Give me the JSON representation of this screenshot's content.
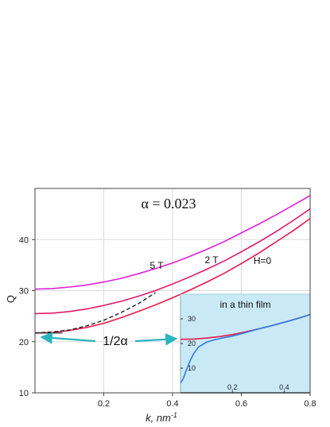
{
  "chart_data": [
    {
      "type": "line",
      "xlabel": "k, nm",
      "xlabel_exponent": "-1",
      "ylabel": "Q",
      "xlim": [
        0.0,
        0.8
      ],
      "ylim": [
        10,
        50
      ],
      "x_ticks": [
        0.2,
        0.4,
        0.6,
        0.8
      ],
      "y_ticks": [
        10,
        20,
        30,
        40
      ],
      "grid": true,
      "annotation_alpha": "α = 0.023",
      "annotation_half": "1/2α",
      "annotation_marker_y": 21.7,
      "colors": {
        "H=0": "#e8194a",
        "2 T": "#e0196e",
        "5 T": "#e020d8",
        "dashed": "#222222",
        "arrow": "#2ab5c0"
      },
      "series": [
        {
          "name": "H=0",
          "label": "H=0",
          "x": [
            0.0,
            0.05,
            0.1,
            0.15,
            0.2,
            0.25,
            0.3,
            0.35,
            0.4,
            0.45,
            0.5,
            0.55,
            0.6,
            0.65,
            0.7,
            0.75,
            0.8
          ],
          "y": [
            21.7,
            21.8,
            22.2,
            22.8,
            23.6,
            24.7,
            25.9,
            27.2,
            28.6,
            30.1,
            31.7,
            33.4,
            35.3,
            37.3,
            39.5,
            41.7,
            44.1
          ]
        },
        {
          "name": "2 T",
          "label": "2 T",
          "x": [
            0.0,
            0.05,
            0.1,
            0.15,
            0.2,
            0.25,
            0.3,
            0.35,
            0.4,
            0.45,
            0.5,
            0.55,
            0.6,
            0.65,
            0.7,
            0.75,
            0.8
          ],
          "y": [
            25.5,
            25.6,
            25.9,
            26.4,
            27.1,
            27.9,
            28.9,
            30.0,
            31.3,
            32.7,
            34.2,
            35.8,
            37.6,
            39.5,
            41.5,
            43.7,
            46.0
          ]
        },
        {
          "name": "5 T",
          "label": "5 T",
          "x": [
            0.0,
            0.05,
            0.1,
            0.15,
            0.2,
            0.25,
            0.3,
            0.35,
            0.4,
            0.45,
            0.5,
            0.55,
            0.6,
            0.65,
            0.7,
            0.75,
            0.8
          ],
          "y": [
            30.3,
            30.4,
            30.7,
            31.1,
            31.7,
            32.4,
            33.3,
            34.3,
            35.4,
            36.7,
            38.1,
            39.6,
            41.3,
            43.0,
            44.8,
            46.7,
            48.6
          ]
        },
        {
          "name": "dashed",
          "label": "",
          "style": "dashed",
          "x": [
            0.0,
            0.05,
            0.1,
            0.15,
            0.2,
            0.25,
            0.3,
            0.35
          ],
          "y": [
            21.7,
            21.9,
            22.3,
            23.1,
            24.2,
            25.7,
            27.4,
            29.6
          ]
        }
      ]
    },
    {
      "type": "line",
      "title": "in a thin film",
      "xlim": [
        0.0,
        0.5
      ],
      "ylim": [
        0,
        40
      ],
      "x_ticks": [
        0.2,
        0.4
      ],
      "y_ticks": [
        10,
        20,
        30
      ],
      "background": "#c9e9f6",
      "series": [
        {
          "name": "H=0",
          "color": "#e8194a",
          "x": [
            0.0,
            0.05,
            0.1,
            0.15,
            0.2,
            0.25,
            0.3,
            0.35,
            0.4,
            0.45,
            0.5
          ],
          "y": [
            21.7,
            21.8,
            22.2,
            22.8,
            23.6,
            24.7,
            25.9,
            27.2,
            28.6,
            30.1,
            31.7
          ]
        },
        {
          "name": "film",
          "color": "#2f7de1",
          "x": [
            0.0,
            0.01,
            0.02,
            0.035,
            0.05,
            0.07,
            0.1,
            0.13,
            0.16,
            0.2,
            0.25,
            0.3,
            0.35,
            0.4,
            0.45,
            0.5
          ],
          "y": [
            4.0,
            5.6,
            8.5,
            12.5,
            15.8,
            18.6,
            20.5,
            21.5,
            22.2,
            23.0,
            24.4,
            25.9,
            27.2,
            28.6,
            30.1,
            31.7
          ]
        }
      ]
    }
  ]
}
